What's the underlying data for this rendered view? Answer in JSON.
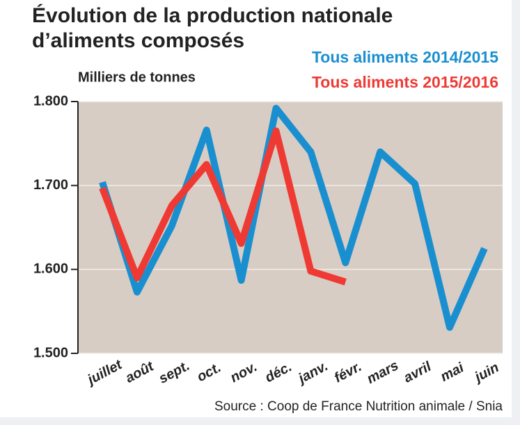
{
  "chart_data": {
    "type": "line",
    "title": [
      "Évolution de la production nationale",
      "d’aliments composés"
    ],
    "y_label": "Milliers de tonnes",
    "source": "Source : Coop de France Nutrition animale / Snia",
    "categories": [
      "juillet",
      "août",
      "sept.",
      "oct.",
      "nov.",
      "déc.",
      "janv.",
      "févr.",
      "mars",
      "avril",
      "mai",
      "juin"
    ],
    "series": [
      {
        "name": "Tous aliments 2014/2015",
        "color": "#1a8fd0",
        "values": [
          1704,
          1573,
          1652,
          1766,
          1587,
          1792,
          1740,
          1608,
          1740,
          1702,
          1531,
          1625
        ]
      },
      {
        "name": "Tous aliments 2015/2016",
        "color": "#ee3a33",
        "values": [
          1697,
          1590,
          1676,
          1725,
          1631,
          1765,
          1598,
          1585,
          null,
          null,
          null,
          null
        ]
      }
    ],
    "ylim": [
      1500,
      1800
    ],
    "yticks": [
      {
        "value": 1500,
        "label": "1.500"
      },
      {
        "value": 1600,
        "label": "1.600"
      },
      {
        "value": 1700,
        "label": "1.700"
      },
      {
        "value": 1800,
        "label": "1.800"
      }
    ],
    "grid": true
  }
}
